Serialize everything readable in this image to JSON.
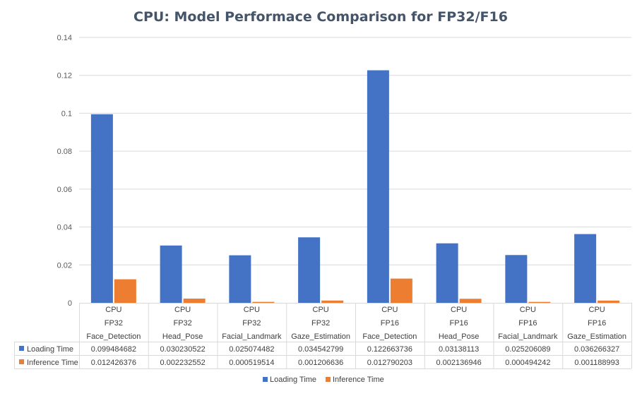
{
  "chart_data": {
    "type": "bar",
    "title": "CPU: Model Performace Comparison  for FP32/F16",
    "categories": [
      [
        "CPU",
        "FP32",
        "Face_Detection"
      ],
      [
        "CPU",
        "FP32",
        "Head_Pose"
      ],
      [
        "CPU",
        "FP32",
        "Facial_Landmark"
      ],
      [
        "CPU",
        "FP32",
        "Gaze_Estimation"
      ],
      [
        "CPU",
        "FP16",
        "Face_Detection"
      ],
      [
        "CPU",
        "FP16",
        "Head_Pose"
      ],
      [
        "CPU",
        "FP16",
        "Facial_Landmark"
      ],
      [
        "CPU",
        "FP16",
        "Gaze_Estimation"
      ]
    ],
    "series": [
      {
        "name": "Loading Time",
        "color": "#4472c4",
        "values": [
          0.099484682,
          0.030230522,
          0.025074482,
          0.034542799,
          0.122663736,
          0.03138113,
          0.025206089,
          0.036266327
        ],
        "labels": [
          "0.099484682",
          "0.030230522",
          "0.025074482",
          "0.034542799",
          "0.122663736",
          "0.03138113",
          "0.025206089",
          "0.036266327"
        ]
      },
      {
        "name": "Inference Time",
        "color": "#ed7d31",
        "values": [
          0.012426376,
          0.002232552,
          0.000519514,
          0.001206636,
          0.012790203,
          0.002136946,
          0.000494242,
          0.001188993
        ],
        "labels": [
          "0.012426376",
          "0.002232552",
          "0.000519514",
          "0.001206636",
          "0.012790203",
          "0.002136946",
          "0.000494242",
          "0.001188993"
        ]
      }
    ],
    "ylim": [
      0,
      0.14
    ],
    "yticks": [
      "0",
      "0.02",
      "0.04",
      "0.06",
      "0.08",
      "0.1",
      "0.12",
      "0.14"
    ],
    "grid": true,
    "legend": "bottom",
    "data_table": true
  }
}
